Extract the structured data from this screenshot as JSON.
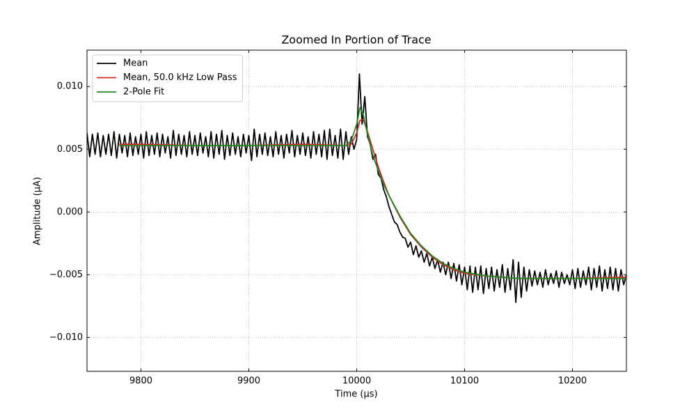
{
  "chart_data": {
    "type": "line",
    "title": "Zoomed In Portion of Trace",
    "xlabel": "Time (μs)",
    "ylabel": "Amplitude (μA)",
    "xlim": [
      9750,
      10250
    ],
    "ylim": [
      -0.0127,
      0.0129
    ],
    "xticks": [
      9800,
      9900,
      10000,
      10100,
      10200
    ],
    "yticks": [
      {
        "value": 0.01,
        "label": "0.010"
      },
      {
        "value": 0.005,
        "label": "0.005"
      },
      {
        "value": 0,
        "label": "0.000"
      },
      {
        "value": -0.005,
        "label": "−0.005"
      },
      {
        "value": -0.01,
        "label": "−0.010"
      }
    ],
    "grid": true,
    "legend": "upper left",
    "series": [
      {
        "name": "Mean",
        "color": "#000000",
        "x": [
          9750,
          9752.5,
          9755,
          9757.5,
          9760,
          9762.5,
          9765,
          9767.5,
          9770,
          9772.5,
          9775,
          9777.5,
          9780,
          9782.5,
          9785,
          9787.5,
          9790,
          9792.5,
          9795,
          9797.5,
          9800,
          9802.5,
          9805,
          9807.5,
          9810,
          9812.5,
          9815,
          9817.5,
          9820,
          9822.5,
          9825,
          9827.5,
          9830,
          9832.5,
          9835,
          9837.5,
          9840,
          9842.5,
          9845,
          9847.5,
          9850,
          9852.5,
          9855,
          9857.5,
          9860,
          9862.5,
          9865,
          9867.5,
          9870,
          9872.5,
          9875,
          9877.5,
          9880,
          9882.5,
          9885,
          9887.5,
          9890,
          9892.5,
          9895,
          9897.5,
          9900,
          9902.5,
          9905,
          9907.5,
          9910,
          9912.5,
          9915,
          9917.5,
          9920,
          9922.5,
          9925,
          9927.5,
          9930,
          9932.5,
          9935,
          9937.5,
          9940,
          9942.5,
          9945,
          9947.5,
          9950,
          9952.5,
          9955,
          9957.5,
          9960,
          9962.5,
          9965,
          9967.5,
          9970,
          9972.5,
          9975,
          9977.5,
          9980,
          9982.5,
          9985,
          9987.5,
          9990,
          9992.5,
          9995,
          9997.5,
          10000,
          10002.5,
          10005,
          10007.5,
          10010,
          10012.5,
          10015,
          10017.5,
          10020,
          10022.5,
          10025,
          10027.5,
          10030,
          10032.5,
          10035,
          10037.5,
          10040,
          10042.5,
          10045,
          10047.5,
          10050,
          10052.5,
          10055,
          10057.5,
          10060,
          10062.5,
          10065,
          10067.5,
          10070,
          10072.5,
          10075,
          10077.5,
          10080,
          10082.5,
          10085,
          10087.5,
          10090,
          10092.5,
          10095,
          10097.5,
          10100,
          10102.5,
          10105,
          10107.5,
          10110,
          10112.5,
          10115,
          10117.5,
          10120,
          10122.5,
          10125,
          10127.5,
          10130,
          10132.5,
          10135,
          10137.5,
          10140,
          10142.5,
          10145,
          10147.5,
          10150,
          10152.5,
          10155,
          10157.5,
          10160,
          10162.5,
          10165,
          10167.5,
          10170,
          10172.5,
          10175,
          10177.5,
          10180,
          10182.5,
          10185,
          10187.5,
          10190,
          10192.5,
          10195,
          10197.5,
          10200,
          10202.5,
          10205,
          10207.5,
          10210,
          10212.5,
          10215,
          10217.5,
          10220,
          10222.5,
          10225,
          10227.5,
          10230,
          10232.5,
          10235,
          10237.5,
          10240,
          10242.5,
          10245,
          10247.5,
          10250
        ],
        "values": [
          0.0063,
          0.0044,
          0.0062,
          0.0046,
          0.0063,
          0.0044,
          0.0061,
          0.0046,
          0.0062,
          0.0045,
          0.0064,
          0.0043,
          0.0062,
          0.0047,
          0.0061,
          0.0044,
          0.0063,
          0.0045,
          0.006,
          0.0046,
          0.0062,
          0.0043,
          0.0064,
          0.0045,
          0.0061,
          0.0046,
          0.0063,
          0.0044,
          0.0062,
          0.0047,
          0.006,
          0.0043,
          0.0065,
          0.0045,
          0.0062,
          0.0046,
          0.0061,
          0.0044,
          0.0064,
          0.0046,
          0.0061,
          0.0045,
          0.0063,
          0.0047,
          0.006,
          0.0044,
          0.0064,
          0.0043,
          0.0062,
          0.0046,
          0.0065,
          0.0042,
          0.0061,
          0.0045,
          0.0063,
          0.0046,
          0.006,
          0.0044,
          0.0062,
          0.0047,
          0.0061,
          0.0041,
          0.0066,
          0.0044,
          0.0062,
          0.0046,
          0.0063,
          0.0045,
          0.006,
          0.0044,
          0.0064,
          0.0046,
          0.0061,
          0.0043,
          0.0062,
          0.0047,
          0.0065,
          0.0044,
          0.0061,
          0.0046,
          0.0063,
          0.0045,
          0.006,
          0.0043,
          0.0064,
          0.0046,
          0.0062,
          0.0044,
          0.0065,
          0.0042,
          0.0066,
          0.0045,
          0.0061,
          0.0043,
          0.0066,
          0.0042,
          0.0064,
          0.0046,
          0.006,
          0.005,
          0.0058,
          0.011,
          0.007,
          0.0092,
          0.006,
          0.0054,
          0.0042,
          0.0046,
          0.003,
          0.0027,
          0.0018,
          0.0012,
          0.0004,
          -0.0002,
          -0.0008,
          -0.001,
          -0.0016,
          -0.002,
          -0.0021,
          -0.0028,
          -0.0024,
          -0.0034,
          -0.0027,
          -0.0036,
          -0.0031,
          -0.004,
          -0.0033,
          -0.0043,
          -0.0036,
          -0.0045,
          -0.0038,
          -0.0048,
          -0.004,
          -0.005,
          -0.004,
          -0.0053,
          -0.0041,
          -0.0055,
          -0.0042,
          -0.0058,
          -0.0044,
          -0.0062,
          -0.0043,
          -0.0064,
          -0.0044,
          -0.0062,
          -0.0043,
          -0.0065,
          -0.0045,
          -0.0061,
          -0.0044,
          -0.0063,
          -0.0046,
          -0.006,
          -0.0042,
          -0.0064,
          -0.0045,
          -0.0062,
          -0.0038,
          -0.0072,
          -0.004,
          -0.0068,
          -0.0044,
          -0.0063,
          -0.0046,
          -0.0059,
          -0.0047,
          -0.0058,
          -0.0048,
          -0.006,
          -0.0046,
          -0.0058,
          -0.0049,
          -0.0057,
          -0.0047,
          -0.006,
          -0.0048,
          -0.0057,
          -0.005,
          -0.0058,
          -0.0046,
          -0.0061,
          -0.0045,
          -0.006,
          -0.0047,
          -0.0058,
          -0.0044,
          -0.0062,
          -0.0045,
          -0.006,
          -0.0043,
          -0.0063,
          -0.0046,
          -0.0061,
          -0.0044,
          -0.0062,
          -0.0045,
          -0.0063,
          -0.0046,
          -0.0058,
          -0.005
        ]
      },
      {
        "name": "Mean, 50.0 kHz Low Pass",
        "color": "#d62728",
        "x": [
          9780,
          9800,
          9850,
          9900,
          9950,
          9990,
          9995,
          10000,
          10003,
          10006,
          10010,
          10015,
          10020,
          10025,
          10030,
          10040,
          10050,
          10060,
          10070,
          10080,
          10090,
          10100,
          10120,
          10150,
          10200,
          10250
        ],
        "values": [
          0.0054,
          0.0054,
          0.0053,
          0.0053,
          0.0054,
          0.0053,
          0.0054,
          0.0063,
          0.0073,
          0.0074,
          0.0064,
          0.005,
          0.0036,
          0.0024,
          0.0013,
          -0.0004,
          -0.0018,
          -0.0028,
          -0.0036,
          -0.0042,
          -0.0046,
          -0.0049,
          -0.0051,
          -0.0053,
          -0.0053,
          -0.0052
        ]
      },
      {
        "name": "2-Pole Fit",
        "color": "#1a8a1a",
        "x": [
          9780,
          9800,
          9850,
          9900,
          9950,
          9990,
          9995,
          10000,
          10003,
          10006,
          10010,
          10015,
          10020,
          10025,
          10030,
          10040,
          10050,
          10060,
          10070,
          10080,
          10090,
          10100,
          10120,
          10150,
          10200,
          10250
        ],
        "values": [
          0.0053,
          0.0053,
          0.0053,
          0.0053,
          0.0053,
          0.0053,
          0.0057,
          0.007,
          0.0083,
          0.0078,
          0.0062,
          0.0045,
          0.0033,
          0.0022,
          0.0013,
          -0.0003,
          -0.0017,
          -0.0027,
          -0.0035,
          -0.0041,
          -0.0045,
          -0.0048,
          -0.0051,
          -0.0053,
          -0.0053,
          -0.0053
        ]
      }
    ]
  }
}
